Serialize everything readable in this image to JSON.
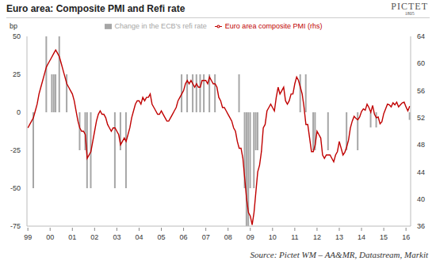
{
  "chart_data": {
    "type": "combo",
    "title": "Euro area: Composite PMI and Refi rate",
    "logo": "PICTET",
    "logo_year": "1805",
    "source": "Source: Pictet WM – AA&MR, Datastream, Markit",
    "ylabel": "bp",
    "categories": [
      "99",
      null,
      null,
      null,
      null,
      null,
      null,
      null,
      null,
      null,
      null,
      null,
      "00",
      null,
      null,
      null,
      null,
      null,
      null,
      null,
      null,
      null,
      null,
      null,
      "01",
      null,
      null,
      null,
      null,
      null,
      null,
      null,
      null,
      null,
      null,
      null,
      "02",
      null,
      null,
      null,
      null,
      null,
      null,
      null,
      null,
      null,
      null,
      null,
      "03",
      null,
      null,
      null,
      null,
      null,
      null,
      null,
      null,
      null,
      null,
      null,
      "04",
      null,
      null,
      null,
      null,
      null,
      null,
      null,
      null,
      null,
      null,
      null,
      "05",
      null,
      null,
      null,
      null,
      null,
      null,
      null,
      null,
      null,
      null,
      null,
      "06",
      null,
      null,
      null,
      null,
      null,
      null,
      null,
      null,
      null,
      null,
      null,
      "07",
      null,
      null,
      null,
      null,
      null,
      null,
      null,
      null,
      null,
      null,
      null,
      "08",
      null,
      null,
      null,
      null,
      null,
      null,
      null,
      null,
      null,
      null,
      null,
      "09",
      null,
      null,
      null,
      null,
      null,
      null,
      null,
      null,
      null,
      null,
      null,
      "10",
      null,
      null,
      null,
      null,
      null,
      null,
      null,
      null,
      null,
      null,
      null,
      "11",
      null,
      null,
      null,
      null,
      null,
      null,
      null,
      null,
      null,
      null,
      null,
      "12",
      null,
      null,
      null,
      null,
      null,
      null,
      null,
      null,
      null,
      null,
      null,
      "13",
      null,
      null,
      null,
      null,
      null,
      null,
      null,
      null,
      null,
      null,
      null,
      "14",
      null,
      null,
      null,
      null,
      null,
      null,
      null,
      null,
      null,
      null,
      null,
      "15",
      null,
      null,
      null,
      null,
      null,
      null,
      null,
      null,
      null,
      null,
      null,
      "16",
      null,
      null
    ],
    "series": [
      {
        "name": "Change in the ECB's refi rate",
        "type": "bar",
        "color": "#a6a6a6",
        "values": [
          null,
          null,
          null,
          -50,
          null,
          null,
          null,
          null,
          null,
          null,
          50,
          null,
          null,
          25,
          25,
          25,
          null,
          50,
          null,
          null,
          null,
          25,
          null,
          null,
          null,
          null,
          null,
          null,
          -25,
          null,
          null,
          -25,
          -50,
          null,
          -50,
          null,
          null,
          null,
          null,
          null,
          null,
          null,
          null,
          null,
          null,
          null,
          null,
          -50,
          null,
          null,
          -25,
          null,
          null,
          -50,
          null,
          null,
          null,
          null,
          null,
          null,
          null,
          null,
          null,
          null,
          null,
          null,
          null,
          null,
          null,
          null,
          null,
          null,
          null,
          null,
          null,
          null,
          null,
          null,
          null,
          null,
          null,
          null,
          null,
          25,
          null,
          null,
          25,
          null,
          null,
          25,
          null,
          25,
          null,
          25,
          null,
          25,
          null,
          null,
          25,
          null,
          null,
          25,
          null,
          null,
          null,
          null,
          null,
          null,
          null,
          null,
          null,
          null,
          null,
          null,
          25,
          null,
          null,
          -50,
          -75,
          -75,
          -50,
          null,
          -50,
          -25,
          -25,
          null,
          null,
          null,
          null,
          null,
          null,
          null,
          null,
          null,
          null,
          null,
          null,
          null,
          null,
          null,
          null,
          null,
          null,
          null,
          null,
          null,
          null,
          25,
          null,
          null,
          25,
          null,
          null,
          null,
          -25,
          -25,
          null,
          null,
          null,
          null,
          null,
          null,
          -25,
          null,
          null,
          null,
          null,
          null,
          null,
          null,
          null,
          null,
          -25,
          null,
          null,
          null,
          null,
          null,
          -25,
          null,
          null,
          null,
          null,
          null,
          null,
          -10,
          null,
          null,
          -10,
          null,
          null,
          null,
          null,
          null,
          null,
          null,
          null,
          null,
          null,
          null,
          null,
          null,
          null,
          null,
          null,
          null,
          -5
        ]
      },
      {
        "name": "Euro area composite PMI (rhs)",
        "type": "line",
        "color": "#c00000",
        "axis": "y2",
        "values": [
          50.5,
          51.0,
          51.5,
          52.0,
          53.0,
          54.0,
          55.5,
          56.5,
          57.5,
          58.5,
          59.5,
          60.0,
          60.5,
          61.0,
          61.5,
          62.0,
          61.5,
          61.0,
          60.0,
          59.0,
          58.0,
          57.0,
          56.5,
          56.0,
          55.5,
          54.5,
          53.0,
          51.5,
          50.5,
          50.0,
          50.0,
          49.5,
          46.0,
          46.5,
          47.0,
          48.5,
          50.0,
          51.5,
          52.5,
          53.0,
          52.5,
          52.5,
          52.0,
          51.0,
          50.5,
          50.0,
          50.5,
          50.5,
          50.0,
          49.5,
          48.0,
          48.5,
          49.0,
          48.5,
          49.5,
          50.5,
          52.0,
          53.0,
          54.0,
          54.5,
          54.5,
          54.0,
          55.0,
          54.5,
          55.0,
          55.0,
          55.5,
          54.0,
          53.5,
          53.0,
          52.5,
          52.5,
          53.0,
          52.5,
          52.0,
          51.5,
          51.5,
          52.0,
          52.5,
          53.0,
          53.5,
          54.5,
          55.0,
          55.5,
          56.0,
          57.0,
          57.5,
          57.0,
          57.5,
          57.0,
          56.5,
          57.0,
          56.5,
          56.5,
          57.5,
          57.5,
          57.5,
          57.0,
          58.0,
          57.5,
          57.0,
          57.0,
          56.5,
          55.0,
          54.5,
          53.5,
          53.5,
          53.0,
          52.5,
          52.0,
          51.5,
          50.5,
          50.0,
          48.5,
          47.5,
          47.5,
          46.0,
          43.0,
          40.0,
          38.0,
          37.5,
          36.2,
          38.0,
          41.0,
          44.0,
          45.0,
          47.0,
          50.5,
          51.0,
          53.0,
          53.5,
          54.0,
          53.5,
          53.0,
          55.0,
          56.5,
          55.5,
          56.0,
          56.5,
          54.5,
          54.0,
          54.5,
          55.5,
          55.5,
          57.0,
          58.0,
          57.5,
          56.5,
          55.5,
          53.5,
          51.0,
          51.0,
          49.0,
          47.0,
          47.0,
          48.0,
          50.0,
          49.5,
          49.0,
          46.5,
          46.0,
          46.5,
          46.5,
          46.5,
          46.0,
          45.5,
          46.5,
          47.0,
          48.5,
          47.5,
          46.5,
          46.9,
          47.7,
          48.7,
          50.5,
          51.5,
          52.2,
          51.9,
          51.7,
          52.1,
          52.9,
          53.3,
          53.1,
          54.0,
          53.5,
          52.8,
          53.8,
          52.5,
          52.0,
          52.1,
          51.1,
          51.4,
          52.6,
          53.3,
          54.0,
          53.9,
          53.6,
          54.2,
          53.9,
          54.3,
          53.6,
          53.9,
          54.2,
          54.3,
          53.6,
          53.0,
          53.7
        ]
      }
    ],
    "ylim": [
      -75,
      50
    ],
    "yticks": [
      -75,
      -50,
      -25,
      0,
      25,
      50
    ],
    "y2lim": [
      36,
      64
    ],
    "y2ticks": [
      36,
      40,
      44,
      48,
      52,
      56,
      60,
      64
    ],
    "grid": false,
    "legend": "top"
  }
}
